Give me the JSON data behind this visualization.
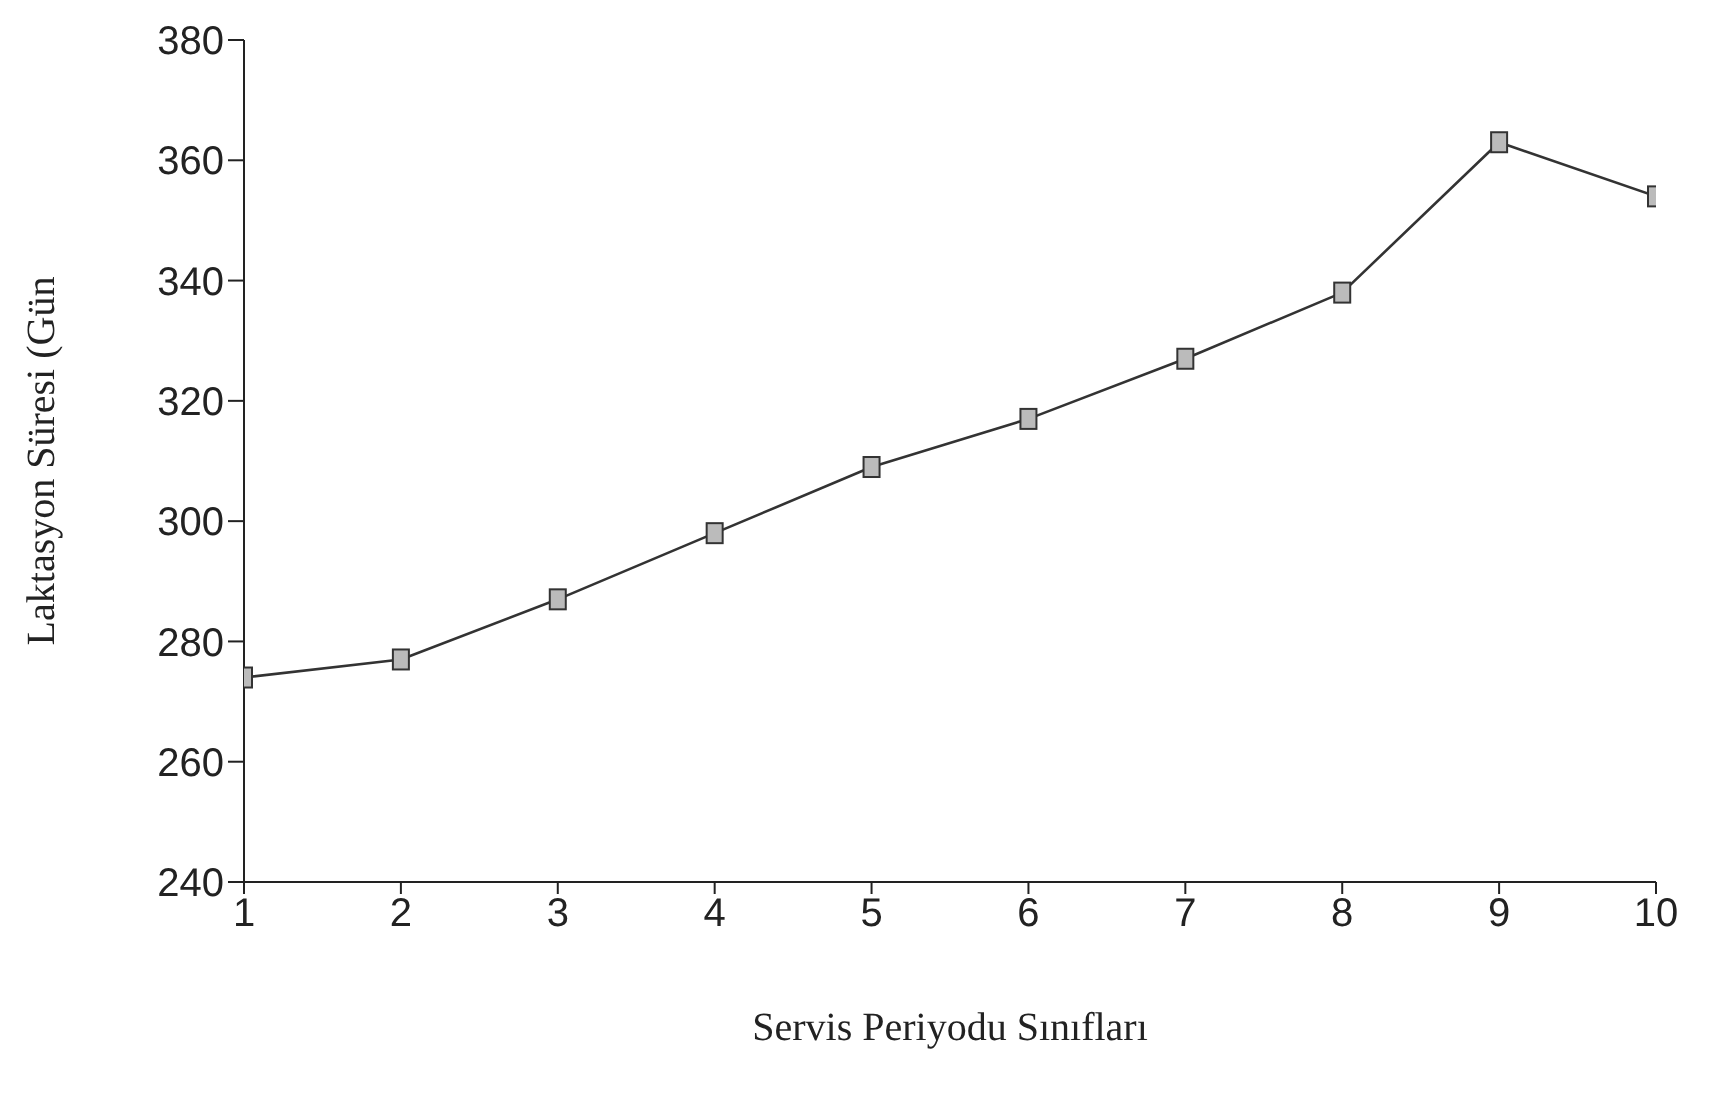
{
  "chart_data": {
    "type": "line",
    "xlabel": "Servis Periyodu Sınıfları",
    "ylabel": "Laktasyon Süresi (Gün",
    "x": [
      1,
      2,
      3,
      4,
      5,
      6,
      7,
      8,
      9,
      10
    ],
    "series": [
      {
        "color": "#333333",
        "values": [
          274,
          277,
          287,
          298,
          309,
          317,
          327,
          338,
          363,
          354
        ]
      }
    ],
    "xlim": [
      1,
      10
    ],
    "xticks": [
      1,
      2,
      3,
      4,
      5,
      6,
      7,
      8,
      9,
      10
    ],
    "ylim": [
      240,
      380
    ],
    "yticks": [
      240,
      260,
      280,
      300,
      320,
      340,
      360,
      380
    ],
    "grid": false,
    "legend": false,
    "marker": "square",
    "line_style": "solid"
  }
}
